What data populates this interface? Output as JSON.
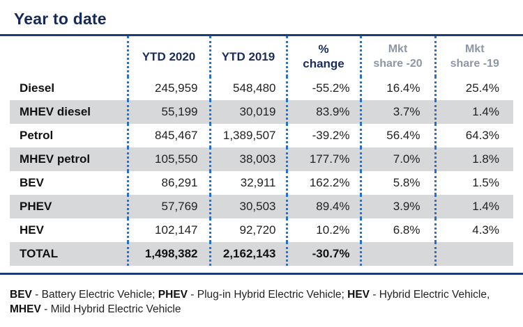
{
  "title": "Year to date",
  "columns": [
    "YTD 2020",
    "YTD 2019",
    "%\nchange",
    "Mkt\nshare -20",
    "Mkt\nshare -19"
  ],
  "col3_l1": "%",
  "col3_l2": "change",
  "col4_l1": "Mkt",
  "col4_l2": "share -20",
  "col5_l1": "Mkt",
  "col5_l2": "share -19",
  "rows": [
    {
      "label": "Diesel",
      "ytd2020": "245,959",
      "ytd2019": "548,480",
      "change": "-55.2%",
      "share20": "16.4%",
      "share19": "25.4%"
    },
    {
      "label": "MHEV diesel",
      "ytd2020": "55,199",
      "ytd2019": "30,019",
      "change": "83.9%",
      "share20": "3.7%",
      "share19": "1.4%"
    },
    {
      "label": "Petrol",
      "ytd2020": "845,467",
      "ytd2019": "1,389,507",
      "change": "-39.2%",
      "share20": "56.4%",
      "share19": "64.3%"
    },
    {
      "label": "MHEV petrol",
      "ytd2020": "105,550",
      "ytd2019": "38,003",
      "change": "177.7%",
      "share20": "7.0%",
      "share19": "1.8%"
    },
    {
      "label": "BEV",
      "ytd2020": "86,291",
      "ytd2019": "32,911",
      "change": "162.2%",
      "share20": "5.8%",
      "share19": "1.5%"
    },
    {
      "label": "PHEV",
      "ytd2020": "57,769",
      "ytd2019": "30,503",
      "change": "89.4%",
      "share20": "3.9%",
      "share19": "1.4%"
    },
    {
      "label": "HEV",
      "ytd2020": "102,147",
      "ytd2019": "92,720",
      "change": "10.2%",
      "share20": "6.8%",
      "share19": "4.3%"
    }
  ],
  "total": {
    "label": "TOTAL",
    "ytd2020": "1,498,382",
    "ytd2019": "2,162,143",
    "change": "-30.7%",
    "share20": "",
    "share19": ""
  },
  "legend": {
    "bev_abbr": "BEV",
    "bev_text": " - Battery Electric Vehicle; ",
    "phev_abbr": "PHEV",
    "phev_text": " - Plug-in Hybrid Electric Vehicle; ",
    "hev_abbr": "HEV",
    "hev_text": " - Hybrid Electric Vehicle,",
    "mhev_abbr": "MHEV",
    "mhev_text": " - Mild Hybrid Electric Vehicle"
  }
}
